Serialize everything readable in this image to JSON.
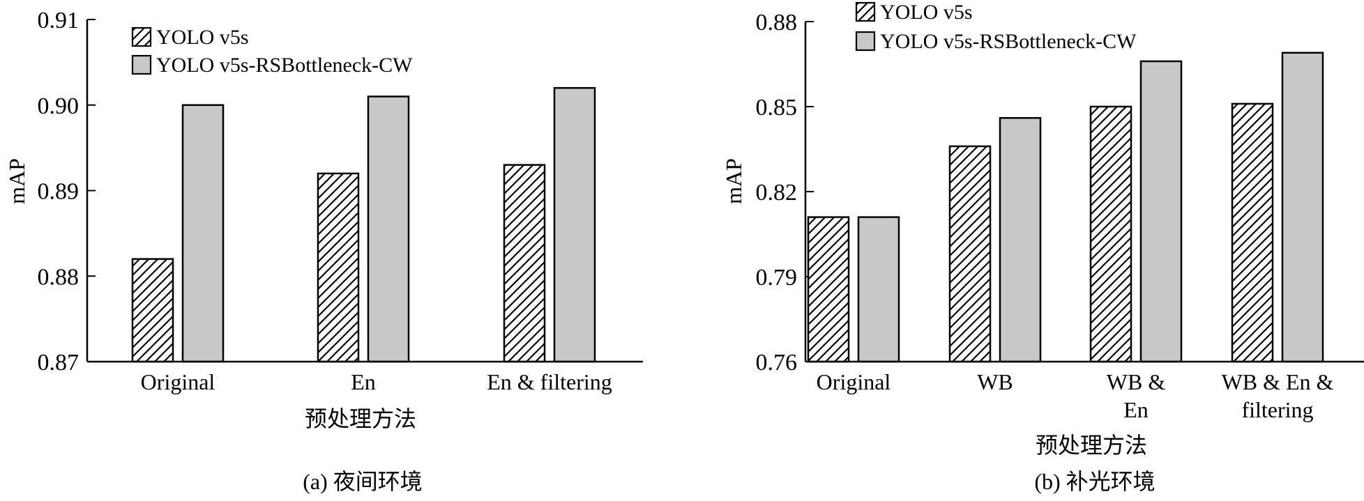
{
  "chart_data": [
    {
      "type": "bar",
      "caption": "(a) 夜间环境",
      "xlabel": "预处理方法",
      "ylabel": "mAP",
      "ylim": [
        0.87,
        0.91
      ],
      "yticks": [
        "0.87",
        "0.88",
        "0.89",
        "0.90",
        "0.91"
      ],
      "categories": [
        [
          "Original"
        ],
        [
          "En"
        ],
        [
          "En & filtering"
        ]
      ],
      "series": [
        {
          "name": "YOLO v5s",
          "pattern": "hatch",
          "color": "#ffffff",
          "values": [
            0.882,
            0.892,
            0.893
          ]
        },
        {
          "name": "YOLO v5s-RSBottleneck-CW",
          "pattern": "solid",
          "color": "#c8c8c8",
          "values": [
            0.9,
            0.901,
            0.902
          ]
        }
      ],
      "legend": "top-left",
      "grid": false
    },
    {
      "type": "bar",
      "caption": "(b) 补光环境",
      "xlabel": "预处理方法",
      "ylabel": "mAP",
      "ylim": [
        0.76,
        0.88
      ],
      "yticks": [
        "0.76",
        "0.79",
        "0.82",
        "0.85",
        "0.88"
      ],
      "categories": [
        [
          "Original"
        ],
        [
          "WB"
        ],
        [
          "WB &",
          "En"
        ],
        [
          "WB & En &",
          "filtering"
        ]
      ],
      "series": [
        {
          "name": "YOLO v5s",
          "pattern": "hatch",
          "color": "#ffffff",
          "values": [
            0.811,
            0.836,
            0.85,
            0.851
          ]
        },
        {
          "name": "YOLO v5s-RSBottleneck-CW",
          "pattern": "solid",
          "color": "#c8c8c8",
          "values": [
            0.811,
            0.846,
            0.866,
            0.869
          ]
        }
      ],
      "legend": "top-left",
      "grid": false
    }
  ]
}
